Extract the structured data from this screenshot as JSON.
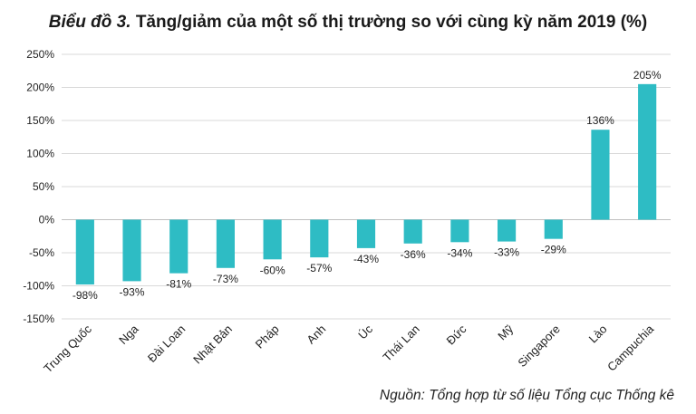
{
  "title": {
    "prefix": "Biểu đồ 3.",
    "text": "Tăng/giảm của một số thị trường so với cùng kỳ năm 2019 (%)"
  },
  "source": "Nguồn: Tổng hợp từ số liệu Tổng cục Thống kê",
  "colors": {
    "bar": "#2ebcc4",
    "grid": "#d9d9d9",
    "axis": "#bfbfbf",
    "text": "#222222"
  },
  "chart_data": {
    "type": "bar",
    "title": "Tăng/giảm của một số thị trường so với cùng kỳ năm 2019 (%)",
    "categories": [
      "Trung Quốc",
      "Nga",
      "Đài Loan",
      "Nhật Bản",
      "Pháp",
      "Anh",
      "Úc",
      "Thái Lan",
      "Đức",
      "Mỹ",
      "Singapore",
      "Lào",
      "Campuchia"
    ],
    "values": [
      -98,
      -93,
      -81,
      -73,
      -60,
      -57,
      -43,
      -36,
      -34,
      -33,
      -29,
      136,
      205
    ],
    "data_labels": [
      "-98%",
      "-93%",
      "-81%",
      "-73%",
      "-60%",
      "-57%",
      "-43%",
      "-36%",
      "-34%",
      "-33%",
      "-29%",
      "136%",
      "205%"
    ],
    "ylim": [
      -150,
      250
    ],
    "yticks": [
      250,
      200,
      150,
      100,
      50,
      0,
      -50,
      -100,
      -150
    ],
    "ytick_labels": [
      "250%",
      "200%",
      "150%",
      "100%",
      "50%",
      "0%",
      "-50%",
      "-100%",
      "-150%"
    ],
    "grid": true,
    "legend": "none"
  }
}
